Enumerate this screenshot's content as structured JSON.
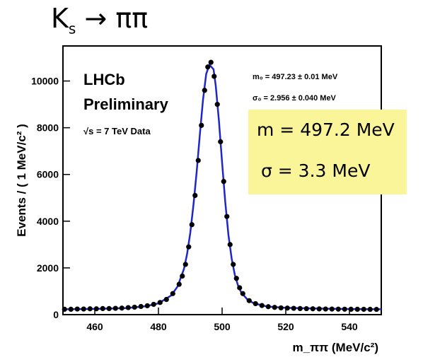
{
  "title_main": "K",
  "title_sub": "s",
  "title_rest": " → ππ",
  "annotations": {
    "lhcb": "LHCb",
    "preliminary": "Preliminary",
    "data_label": "√s = 7 TeV Data",
    "m0_param": "m₀ = 497.23 ± 0.01 MeV",
    "sigma0_param": "σ₀ = 2.956 ± 0.040 MeV",
    "mass_result": "m = 497.2 MeV",
    "sigma_result": "σ = 3.3 MeV"
  },
  "colors": {
    "fit_line": "#1f27c8",
    "points": "#000000",
    "highlight_box": "#fbf59a"
  },
  "chart_data": {
    "type": "scatter",
    "xlabel": "m_ππ (MeV/c²)",
    "ylabel": "Events / ( 1 MeV/c² )",
    "xlim": [
      450,
      550
    ],
    "ylim": [
      0,
      11500
    ],
    "xticks": [
      460,
      480,
      500,
      520,
      540
    ],
    "yticks": [
      0,
      2000,
      4000,
      6000,
      8000,
      10000
    ],
    "grid": false,
    "series": [
      {
        "kind": "points",
        "x": [
          450.5,
          452.5,
          454.5,
          456.5,
          458.5,
          460.5,
          462.5,
          464.5,
          466.5,
          468.5,
          470.5,
          472.5,
          474.5,
          476.5,
          478.5,
          480.5,
          482.5,
          484.5,
          486.5,
          487.5,
          488.5,
          489.5,
          490.5,
          491.5,
          492.5,
          493.5,
          494.5,
          495.5,
          496.5,
          497.5,
          498.5,
          499.5,
          500.5,
          501.5,
          502.5,
          503.5,
          504.5,
          505.5,
          506.5,
          508.5,
          510.5,
          512.5,
          514.5,
          516.5,
          518.5,
          520.5,
          522.5,
          524.5,
          526.5,
          528.5,
          530.5,
          532.5,
          534.5,
          536.5,
          538.5,
          540.5,
          542.5,
          544.5,
          546.5,
          548.5
        ],
        "y": [
          230,
          230,
          240,
          240,
          250,
          250,
          260,
          260,
          270,
          280,
          300,
          320,
          350,
          380,
          440,
          520,
          650,
          900,
          1300,
          1650,
          2150,
          2900,
          3850,
          5100,
          6600,
          8100,
          9600,
          10600,
          10800,
          10200,
          9000,
          7400,
          5700,
          4200,
          3000,
          2150,
          1550,
          1150,
          900,
          600,
          470,
          390,
          340,
          310,
          290,
          280,
          270,
          260,
          255,
          250,
          245,
          240,
          238,
          235,
          233,
          230,
          230,
          228,
          226,
          225
        ]
      },
      {
        "kind": "fit",
        "x": [
          450,
          460,
          470,
          476,
          480,
          484,
          486,
          488,
          489,
          490,
          491,
          492,
          493,
          494,
          495,
          496,
          497,
          497.3,
          498,
          499,
          500,
          501,
          502,
          503,
          504,
          505,
          506,
          508,
          510,
          514,
          520,
          530,
          540,
          550
        ],
        "y": [
          230,
          245,
          280,
          360,
          480,
          820,
          1200,
          1950,
          2600,
          3500,
          4700,
          6100,
          7700,
          9200,
          10300,
          10700,
          10550,
          10500,
          9800,
          8300,
          6500,
          4800,
          3400,
          2400,
          1700,
          1250,
          950,
          640,
          480,
          350,
          290,
          260,
          240,
          230
        ]
      }
    ]
  }
}
